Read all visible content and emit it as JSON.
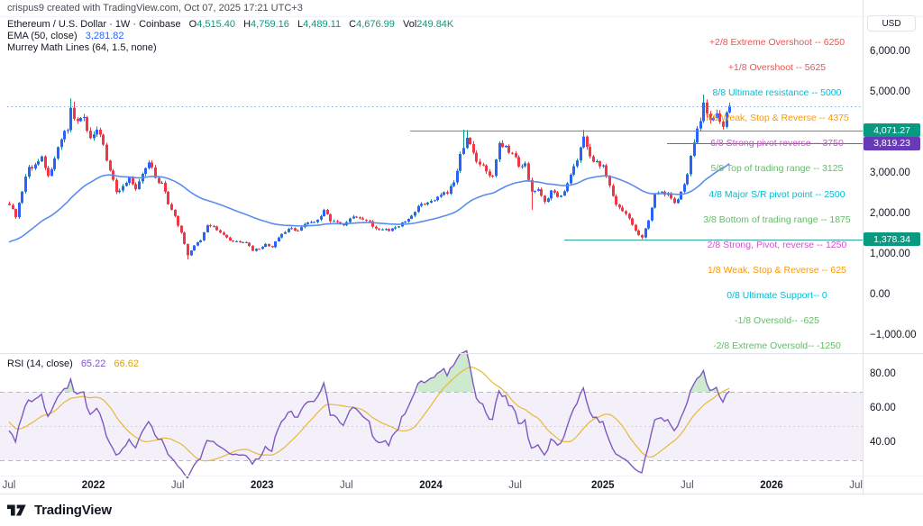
{
  "header": {
    "attribution": "crispus9 created with TradingView.com, Oct 07, 2025 17:21 UTC+3",
    "symbol_row": {
      "text": "Ethereum / U.S. Dollar · 1W · Coinbase",
      "o_label": "O",
      "o": "4,515.40",
      "h_label": "H",
      "h": "4,759.16",
      "l_label": "L",
      "l": "4,489.11",
      "c_label": "C",
      "c": "4,676.99",
      "vol_label": "Vol",
      "vol": "249.84K"
    },
    "ema_row": {
      "label": "EMA (50, close)",
      "value": "3,281.82"
    },
    "murrey_row": {
      "label": "Murrey Math Lines (64, 1.5, none)"
    }
  },
  "axis": {
    "currency_button": "USD",
    "price_ticks": [
      {
        "label": "6,000.00",
        "value": 6000
      },
      {
        "label": "5,000.00",
        "value": 5000
      },
      {
        "label": "3,000.00",
        "value": 3000
      },
      {
        "label": "2,000.00",
        "value": 2000
      },
      {
        "label": "1,000.00",
        "value": 1000
      },
      {
        "label": "0.00",
        "value": 0
      },
      {
        "label": "−1,000.00",
        "value": -1000
      }
    ],
    "rsi_ticks": [
      {
        "label": "80.00",
        "value": 80
      },
      {
        "label": "60.00",
        "value": 60
      },
      {
        "label": "40.00",
        "value": 40
      }
    ],
    "time_ticks": [
      {
        "label": "Jul",
        "week": 0,
        "bold": false
      },
      {
        "label": "2022",
        "week": 26,
        "bold": true
      },
      {
        "label": "Jul",
        "week": 52,
        "bold": false
      },
      {
        "label": "2023",
        "week": 78,
        "bold": true
      },
      {
        "label": "Jul",
        "week": 104,
        "bold": false
      },
      {
        "label": "2024",
        "week": 130,
        "bold": true
      },
      {
        "label": "Jul",
        "week": 156,
        "bold": false
      },
      {
        "label": "2025",
        "week": 183,
        "bold": true
      },
      {
        "label": "Jul",
        "week": 209,
        "bold": false
      },
      {
        "label": "2026",
        "week": 235,
        "bold": true
      },
      {
        "label": "Jul",
        "week": 261,
        "bold": false
      }
    ]
  },
  "rsi_legend": {
    "label": "RSI (14, close)",
    "value": "65.22",
    "ma_value": "66.62"
  },
  "footer": {
    "brand": "TradingView"
  },
  "murrey_levels": [
    {
      "label": "+2/8 Extreme Overshoot --  6250",
      "level": 6250,
      "color": "#ef5350"
    },
    {
      "label": "+1/8 Overshoot --  5625",
      "level": 5625,
      "color": "#ef5350"
    },
    {
      "label": "8/8 Ultimate resistance --  5000",
      "level": 5000,
      "color": "#00bcd4"
    },
    {
      "label": "7/8 Weak, Stop & Reverse --  4375",
      "level": 4375,
      "color": "#ff9800"
    },
    {
      "label": "6/8 Strong pivot reverse --  3750",
      "level": 3750,
      "color": "#d052d0"
    },
    {
      "label": "5/8 Top of trading range --  3125",
      "level": 3125,
      "color": "#66bb6a"
    },
    {
      "label": "4/8 Major S/R pivot point --  2500",
      "level": 2500,
      "color": "#00bcd4"
    },
    {
      "label": "3/8 Bottom of trading range --  1875",
      "level": 1875,
      "color": "#66bb6a"
    },
    {
      "label": "2/8 Strong, Pivot, reverse --  1250",
      "level": 1250,
      "color": "#d052d0"
    },
    {
      "label": "1/8 Weak, Stop & Reverse --  625",
      "level": 625,
      "color": "#ff9800"
    },
    {
      "label": "0/8 Ultimate Support--  0",
      "level": 0,
      "color": "#00bcd4"
    },
    {
      "label": "-1/8 Oversold--  -625",
      "level": -625,
      "color": "#66bb6a"
    },
    {
      "label": "-2/8 Extreme Oversold--  -1250",
      "level": -1250,
      "color": "#66bb6a"
    }
  ],
  "price_lines": [
    {
      "tag": "4,071.27",
      "y_level": 4071.27,
      "tag_color": "#089981",
      "line_color": "#33a89d",
      "from_x": 455
    },
    {
      "tag": "3,819.23",
      "y_level": 3750,
      "tag_color": "#673ab7",
      "tag_text_level": 3819.23,
      "line_color": "#7e57c2",
      "from_x": 740
    },
    {
      "tag": "1,378.34",
      "y_level": 1378.34,
      "tag_color": "#089981",
      "line_color": "#33a89d",
      "from_x": 626
    }
  ],
  "current_price_line": {
    "value": 4676.99,
    "color": "#82a7f5",
    "style": "dotted"
  },
  "chart_data": [
    {
      "type": "candlestick",
      "title": "Ethereum / U.S. Dollar",
      "interval": "1W",
      "exchange": "Coinbase",
      "x_axis": "weeks from Jul 2021 to Jul 2026 (candles end Oct 06 2025, week 222)",
      "ylabel": "USD",
      "ylim": [
        -1400,
        6600
      ],
      "grid": false,
      "last_candle": {
        "open": 4515.4,
        "high": 4759.16,
        "low": 4489.11,
        "close": 4676.99,
        "volume": "249.84K"
      },
      "up_body_color": "#2962ff",
      "up_wick_color": "#089981",
      "down_color": "#f23645",
      "weekly_close_anchors": [
        [
          0,
          2230
        ],
        [
          2,
          1930
        ],
        [
          4,
          2560
        ],
        [
          6,
          3170
        ],
        [
          8,
          3230
        ],
        [
          10,
          3430
        ],
        [
          12,
          2950
        ],
        [
          14,
          3380
        ],
        [
          16,
          3850
        ],
        [
          18,
          4080
        ],
        [
          19,
          4630
        ],
        [
          21,
          4300
        ],
        [
          23,
          4400
        ],
        [
          25,
          3880
        ],
        [
          27,
          4090
        ],
        [
          29,
          3720
        ],
        [
          31,
          3080
        ],
        [
          33,
          2550
        ],
        [
          35,
          2700
        ],
        [
          37,
          2920
        ],
        [
          39,
          2620
        ],
        [
          41,
          3000
        ],
        [
          43,
          3280
        ],
        [
          45,
          2900
        ],
        [
          47,
          2780
        ],
        [
          49,
          2250
        ],
        [
          51,
          1960
        ],
        [
          53,
          1550
        ],
        [
          55,
          990
        ],
        [
          57,
          1230
        ],
        [
          59,
          1360
        ],
        [
          61,
          1730
        ],
        [
          63,
          1700
        ],
        [
          65,
          1550
        ],
        [
          67,
          1430
        ],
        [
          69,
          1330
        ],
        [
          71,
          1310
        ],
        [
          73,
          1300
        ],
        [
          75,
          1100
        ],
        [
          77,
          1150
        ],
        [
          79,
          1270
        ],
        [
          81,
          1190
        ],
        [
          83,
          1430
        ],
        [
          85,
          1560
        ],
        [
          87,
          1660
        ],
        [
          89,
          1600
        ],
        [
          91,
          1760
        ],
        [
          93,
          1810
        ],
        [
          95,
          1870
        ],
        [
          97,
          2110
        ],
        [
          99,
          1830
        ],
        [
          101,
          1810
        ],
        [
          103,
          1730
        ],
        [
          105,
          1900
        ],
        [
          107,
          1930
        ],
        [
          109,
          1870
        ],
        [
          111,
          1830
        ],
        [
          113,
          1650
        ],
        [
          115,
          1630
        ],
        [
          117,
          1590
        ],
        [
          119,
          1680
        ],
        [
          121,
          1800
        ],
        [
          123,
          1890
        ],
        [
          125,
          2060
        ],
        [
          127,
          2260
        ],
        [
          129,
          2290
        ],
        [
          131,
          2350
        ],
        [
          133,
          2480
        ],
        [
          135,
          2510
        ],
        [
          137,
          2790
        ],
        [
          139,
          3490
        ],
        [
          141,
          3890
        ],
        [
          143,
          3520
        ],
        [
          145,
          3230
        ],
        [
          147,
          3060
        ],
        [
          149,
          2950
        ],
        [
          151,
          3760
        ],
        [
          153,
          3690
        ],
        [
          155,
          3510
        ],
        [
          157,
          3180
        ],
        [
          159,
          3260
        ],
        [
          161,
          2560
        ],
        [
          163,
          2620
        ],
        [
          165,
          2310
        ],
        [
          167,
          2590
        ],
        [
          169,
          2430
        ],
        [
          171,
          2570
        ],
        [
          173,
          2980
        ],
        [
          175,
          3330
        ],
        [
          177,
          3920
        ],
        [
          179,
          3430
        ],
        [
          181,
          3310
        ],
        [
          183,
          3210
        ],
        [
          185,
          2710
        ],
        [
          187,
          2240
        ],
        [
          189,
          2080
        ],
        [
          191,
          1900
        ],
        [
          193,
          1600
        ],
        [
          195,
          1430
        ],
        [
          197,
          1850
        ],
        [
          199,
          2500
        ],
        [
          201,
          2560
        ],
        [
          203,
          2520
        ],
        [
          205,
          2280
        ],
        [
          207,
          2560
        ],
        [
          209,
          2990
        ],
        [
          211,
          3770
        ],
        [
          213,
          4300
        ],
        [
          214,
          4760
        ],
        [
          216,
          4320
        ],
        [
          218,
          4490
        ],
        [
          220,
          4160
        ],
        [
          221,
          4515
        ],
        [
          222,
          4677
        ]
      ],
      "high_overrides": [
        [
          19,
          4860
        ],
        [
          20,
          4780
        ],
        [
          140,
          4093
        ],
        [
          141,
          4078
        ],
        [
          177,
          4085
        ],
        [
          214,
          4956
        ]
      ],
      "low_overrides": [
        [
          55,
          885
        ],
        [
          161,
          2115
        ],
        [
          195,
          1385
        ]
      ]
    },
    {
      "type": "line",
      "name": "EMA (50, close)",
      "color": "#5b8def",
      "last_value": 3281.82,
      "seed_value_at_left_edge": 1280
    },
    {
      "type": "line",
      "name": "RSI (14, close)",
      "pane": "lower",
      "color": "#7e57c2",
      "ma_color": "#e8b937",
      "last_value": 65.22,
      "ma_last_value": 66.62,
      "band": [
        30,
        70
      ],
      "band_fill": "rgba(126,87,194,0.09)",
      "overbought_fill": "rgba(76,175,80,0.28)",
      "ylim": [
        0,
        100
      ]
    }
  ]
}
